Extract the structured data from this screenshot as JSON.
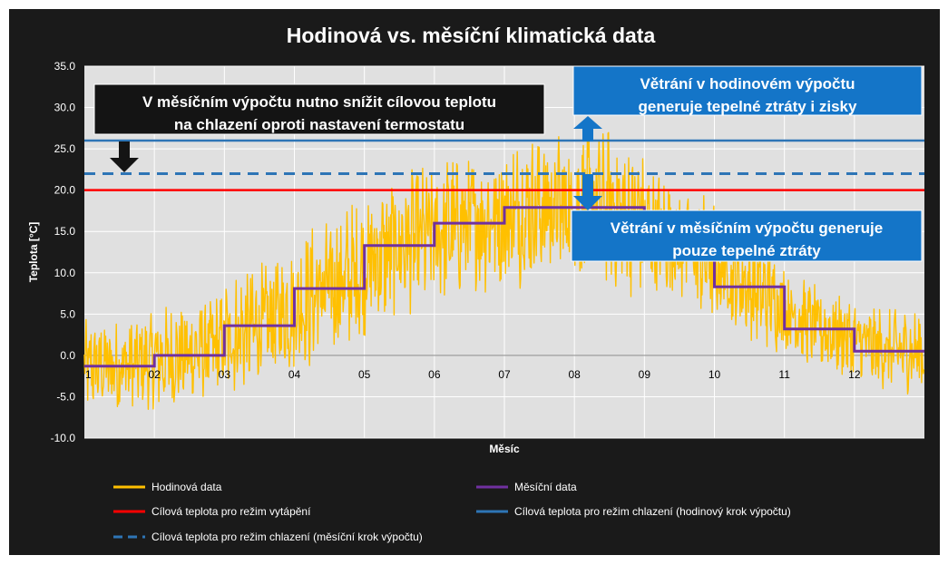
{
  "chart_data": {
    "type": "line",
    "title": "Hodinová vs. měsíční klimatická data",
    "xlabel": "Měsíc",
    "ylabel": "Teplota [°C]",
    "ylim": [
      -10,
      35
    ],
    "yticks": [
      "35.0",
      "30.0",
      "25.0",
      "20.0",
      "15.0",
      "10.0",
      "5.0",
      "0.0",
      "-5.0",
      "-10.0"
    ],
    "categories": [
      "1",
      "02",
      "03",
      "04",
      "05",
      "06",
      "07",
      "08",
      "09",
      "10",
      "11",
      "12"
    ],
    "grid": true,
    "legend_position": "bottom",
    "series": [
      {
        "name": "Hodinová data",
        "color": "#FFC000",
        "monthly_mean": [
          -1.3,
          0.0,
          3.6,
          8.1,
          13.3,
          16.0,
          17.9,
          17.9,
          13.7,
          8.3,
          3.2,
          0.5
        ],
        "monthly_range": [
          9,
          10,
          12,
          14,
          14,
          14,
          15,
          15,
          12,
          10,
          8,
          8
        ]
      },
      {
        "name": "Měsíční data",
        "color": "#7030A0",
        "values": [
          -1.3,
          0.0,
          3.6,
          8.1,
          13.3,
          16.0,
          17.9,
          17.9,
          13.7,
          8.3,
          3.2,
          0.5
        ]
      },
      {
        "name": "Cílová teplota pro režim vytápění",
        "color": "#FF0000",
        "value": 20
      },
      {
        "name": "Cílová teplota pro režim chlazení (hodinový krok výpočtu)",
        "color": "#2E75B6",
        "value": 26
      },
      {
        "name": "Cílová teplota pro režim chlazení (měsíční krok výpočtu)",
        "color": "#2E75B6",
        "dashed": true,
        "value": 22
      }
    ],
    "annotations": [
      {
        "text": [
          "V měsíčním výpočtu nutno snížit cílovou teplotu",
          "na chlazení oproti nastavení termostatu"
        ],
        "style": "dark"
      },
      {
        "text": [
          "Větrání v hodinovém výpočtu",
          "generuje tepelné ztráty i zisky"
        ],
        "style": "blue"
      },
      {
        "text": [
          "Větrání v měsíčním výpočtu generuje",
          "pouze tepelné ztráty"
        ],
        "style": "blue"
      }
    ]
  }
}
